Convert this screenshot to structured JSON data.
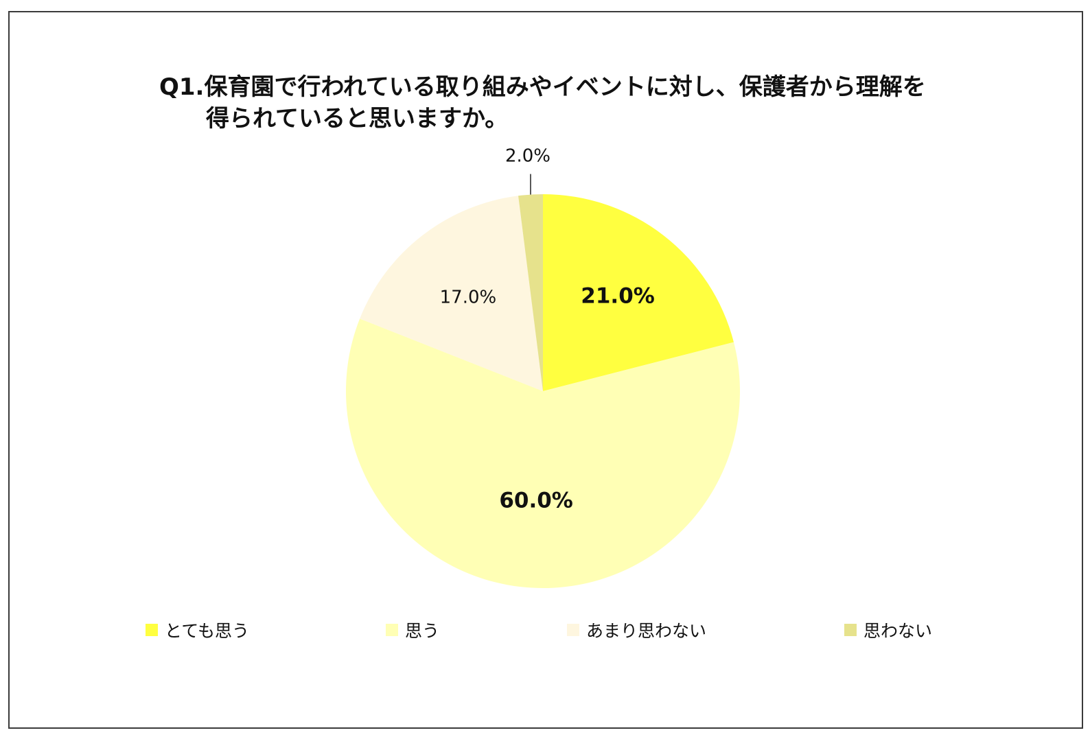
{
  "chart_data": {
    "type": "pie",
    "title_line1": "Q1.保育園で行われている取り組みやイベントに対し、保護者から理解を",
    "title_line2": "得られていると思いますか。",
    "slices": [
      {
        "label": "とても思う",
        "value": 21.0,
        "display": "21.0%",
        "color": "#ffff40",
        "bold": true
      },
      {
        "label": "思う",
        "value": 60.0,
        "display": "60.0%",
        "color": "#ffffb5",
        "bold": true
      },
      {
        "label": "あまり思わない",
        "value": 17.0,
        "display": "17.0%",
        "color": "#fef6df",
        "bold": false
      },
      {
        "label": "思わない",
        "value": 2.0,
        "display": "2.0%",
        "color": "#e6e28c",
        "bold": false
      }
    ],
    "legend_position": "bottom"
  }
}
